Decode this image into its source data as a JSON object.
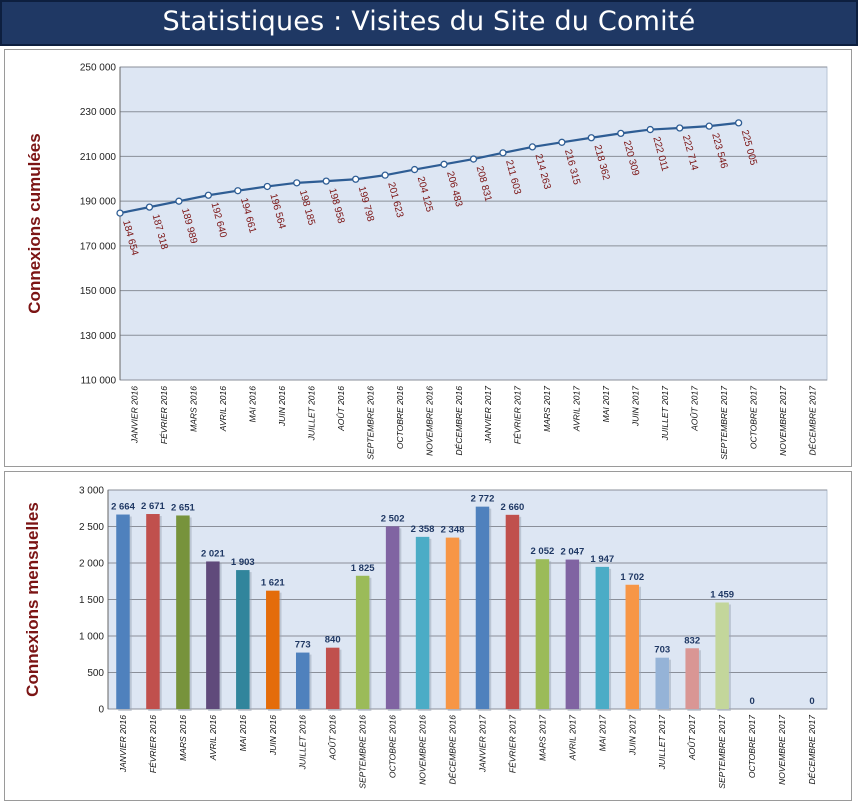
{
  "header": {
    "title": "Statistiques : Visites du Site du Comité"
  },
  "colors": {
    "banner_bg": "#1f3864",
    "plot_bg": "#dde6f3",
    "line": "#2e5d94",
    "axis_title": "#7b1414",
    "data_label_top": "#7b1414",
    "data_label_bottom": "#1f3864"
  },
  "chart_data": [
    {
      "type": "line",
      "title": "",
      "ylabel": "Connexions cumulées",
      "xlabel": "",
      "ylim": [
        110000,
        250000
      ],
      "yticks": [
        110000,
        130000,
        150000,
        170000,
        190000,
        210000,
        230000,
        250000
      ],
      "ytick_labels": [
        "110 000",
        "130 000",
        "150 000",
        "170 000",
        "190 000",
        "210 000",
        "230 000",
        "250 000"
      ],
      "categories": [
        "JANVIER 2016",
        "FÉVRIER 2016",
        "MARS 2016",
        "AVRIL 2016",
        "MAI 2016",
        "JUIN 2016",
        "JUILLET 2016",
        "AOÛT 2016",
        "SEPTEMBRE 2016",
        "OCTOBRE 2016",
        "NOVEMBRE 2016",
        "DÉCEMBRE 2016",
        "JANVIER 2017",
        "FÉVRIER 2017",
        "MARS 2017",
        "AVRIL 2017",
        "MAI 2017",
        "JUIN 2017",
        "JUILLET 2017",
        "AOÛT 2017",
        "SEPTEMBRE 2017",
        "OCTOBRE 2017",
        "NOVEMBRE 2017",
        "DÉCEMBRE 2017"
      ],
      "values": [
        184654,
        187318,
        189989,
        192640,
        194661,
        196564,
        198185,
        198958,
        199798,
        201623,
        204125,
        206483,
        208831,
        211603,
        214263,
        216315,
        218362,
        220309,
        222011,
        222714,
        223546,
        225005
      ],
      "labels": [
        "184 654",
        "187 318",
        "189 989",
        "192 640",
        "194 661",
        "196 564",
        "198 185",
        "198 958",
        "199 798",
        "201 623",
        "204 125",
        "206 483",
        "208 831",
        "211 603",
        "214 263",
        "216 315",
        "218 362",
        "220 309",
        "222 011",
        "222 714",
        "223 546",
        "225 005"
      ],
      "grid": true,
      "legend": "none"
    },
    {
      "type": "bar",
      "title": "",
      "ylabel": "Connexions mensuelles",
      "xlabel": "",
      "ylim": [
        0,
        3000
      ],
      "yticks": [
        0,
        500,
        1000,
        1500,
        2000,
        2500,
        3000
      ],
      "ytick_labels": [
        "0",
        "500",
        "1 000",
        "1 500",
        "2 000",
        "2 500",
        "3 000"
      ],
      "categories": [
        "JANVIER 2016",
        "FÉVRIER 2016",
        "MARS 2016",
        "AVRIL 2016",
        "MAI 2016",
        "JUIN 2016",
        "JUILLET 2016",
        "AOÛT 2016",
        "SEPTEMBRE 2016",
        "OCTOBRE 2016",
        "NOVEMBRE 2016",
        "DÉCEMBRE 2016",
        "JANVIER 2017",
        "FÉVRIER 2017",
        "MARS 2017",
        "AVRIL 2017",
        "MAI 2017",
        "JUIN 2017",
        "JUILLET 2017",
        "AOÛT 2017",
        "SEPTEMBRE 2017",
        "OCTOBRE 2017",
        "NOVEMBRE 2017",
        "DÉCEMBRE 2017"
      ],
      "values": [
        2664,
        2671,
        2651,
        2021,
        1903,
        1621,
        773,
        840,
        1825,
        2502,
        2358,
        2348,
        2772,
        2660,
        2052,
        2047,
        1947,
        1702,
        703,
        832,
        1459,
        0,
        null,
        0
      ],
      "labels": [
        "2 664",
        "2 671",
        "2 651",
        "2 021",
        "1 903",
        "1 621",
        "773",
        "840",
        "1 825",
        "2 502",
        "2 358",
        "2 348",
        "2 772",
        "2 660",
        "2 052",
        "2 047",
        "1 947",
        "1 702",
        "703",
        "832",
        "1 459",
        "0",
        "",
        "0"
      ],
      "bar_colors": [
        "#4f81bd",
        "#c0504d",
        "#77933c",
        "#604a7b",
        "#31859c",
        "#e46c0a",
        "#4f81bd",
        "#c0504d",
        "#9bbb59",
        "#8064a2",
        "#4bacc6",
        "#f79646",
        "#4f81bd",
        "#c0504d",
        "#9bbb59",
        "#8064a2",
        "#4bacc6",
        "#f79646",
        "#95b3d7",
        "#d99694",
        "#c3d69b",
        "#b3a2c7",
        "#93cddd",
        "#fac090"
      ],
      "grid": true,
      "legend": "none"
    }
  ]
}
